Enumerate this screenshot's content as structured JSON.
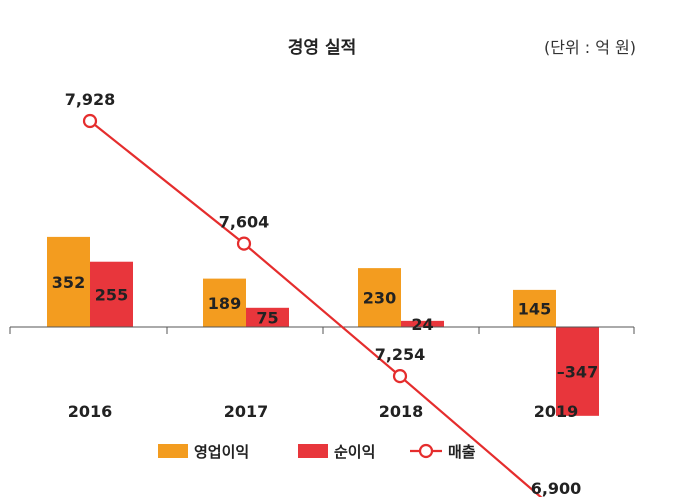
{
  "chart_data": {
    "type": "bar+line",
    "title": "경영 실적",
    "unit": "(단위 : 억 원)",
    "categories": [
      "2016",
      "2017",
      "2018",
      "2019"
    ],
    "series": [
      {
        "name": "영업이익",
        "type": "bar",
        "color": "#f39c1f",
        "values": [
          352,
          189,
          230,
          145
        ]
      },
      {
        "name": "순이익",
        "type": "bar",
        "color": "#e8363c",
        "values": [
          255,
          75,
          24,
          -347
        ]
      },
      {
        "name": "매출",
        "type": "line",
        "color": "#e52d2d",
        "values": [
          7928,
          7604,
          7254,
          6900
        ]
      }
    ],
    "value_labels": {
      "영업이익": [
        "352",
        "189",
        "230",
        "145"
      ],
      "순이익": [
        "255",
        "75",
        "24",
        "–347"
      ],
      "매출": [
        "7,928",
        "7,604",
        "7,254",
        "6,900"
      ]
    },
    "legend": [
      "영업이익",
      "순이익",
      "매출"
    ],
    "legend_position": "bottom",
    "grid": false
  }
}
